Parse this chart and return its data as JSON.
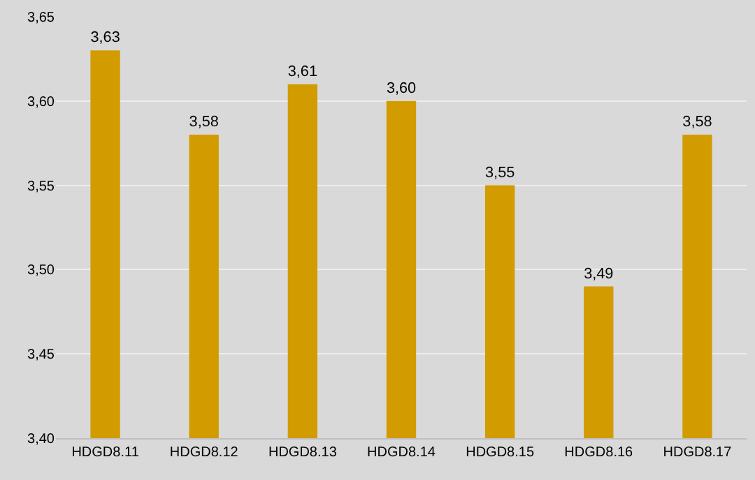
{
  "chart_data": {
    "type": "bar",
    "categories": [
      "HDGD8.11",
      "HDGD8.12",
      "HDGD8.13",
      "HDGD8.14",
      "HDGD8.15",
      "HDGD8.16",
      "HDGD8.17"
    ],
    "values": [
      3.63,
      3.58,
      3.61,
      3.6,
      3.55,
      3.49,
      3.58
    ],
    "value_labels": [
      "3,63",
      "3,58",
      "3,61",
      "3,60",
      "3,55",
      "3,49",
      "3,58"
    ],
    "color": "#d29b00",
    "ylim": [
      3.4,
      3.65
    ],
    "yticks": [
      {
        "value": 3.4,
        "label": "3,40"
      },
      {
        "value": 3.45,
        "label": "3,45"
      },
      {
        "value": 3.5,
        "label": "3,50"
      },
      {
        "value": 3.55,
        "label": "3,55"
      },
      {
        "value": 3.6,
        "label": "3,60"
      },
      {
        "value": 3.65,
        "label": "3,65"
      }
    ],
    "grid": "y"
  }
}
